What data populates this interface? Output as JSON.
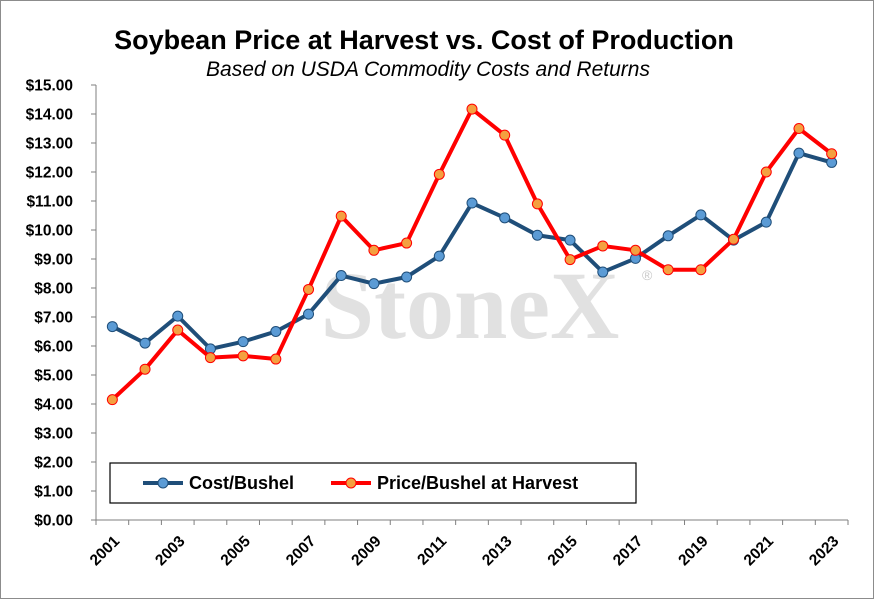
{
  "chart_data": {
    "type": "line",
    "title": "Soybean Price at Harvest vs. Cost of Production",
    "subtitle": "Based on USDA Commodity Costs and Returns",
    "watermark": "StoneX",
    "watermark_mark": "®",
    "x": [
      2001,
      2002,
      2003,
      2004,
      2005,
      2006,
      2007,
      2008,
      2009,
      2010,
      2011,
      2012,
      2013,
      2014,
      2015,
      2016,
      2017,
      2018,
      2019,
      2020,
      2021,
      2022,
      2023
    ],
    "x_tick_labels": [
      "2001",
      "2003",
      "2005",
      "2007",
      "2009",
      "2011",
      "2013",
      "2015",
      "2017",
      "2019",
      "2021",
      "2023"
    ],
    "y_tick_labels": [
      "$0.00",
      "$1.00",
      "$2.00",
      "$3.00",
      "$4.00",
      "$5.00",
      "$6.00",
      "$7.00",
      "$8.00",
      "$9.00",
      "$10.00",
      "$11.00",
      "$12.00",
      "$13.00",
      "$14.00",
      "$15.00"
    ],
    "ylim": [
      0,
      15
    ],
    "y_step": 1,
    "grid": false,
    "legend_position": "bottom-left",
    "series": [
      {
        "name": "Cost/Bushel",
        "color": "#1f4e79",
        "marker_color": "#5b9bd5",
        "values": [
          6.67,
          6.1,
          7.03,
          5.9,
          6.15,
          6.5,
          7.1,
          8.43,
          8.15,
          8.38,
          9.1,
          10.93,
          10.42,
          9.82,
          9.65,
          8.55,
          9.02,
          9.8,
          10.52,
          9.65,
          10.27,
          12.65,
          12.33
        ]
      },
      {
        "name": "Price/Bushel at Harvest",
        "color": "#ff0000",
        "marker_color": "#f4a040",
        "values": [
          4.15,
          5.2,
          6.55,
          5.6,
          5.66,
          5.55,
          7.95,
          10.48,
          9.3,
          9.55,
          11.92,
          14.17,
          13.27,
          10.9,
          8.98,
          9.45,
          9.3,
          8.63,
          8.63,
          9.68,
          12.0,
          13.5,
          12.63
        ]
      }
    ]
  }
}
